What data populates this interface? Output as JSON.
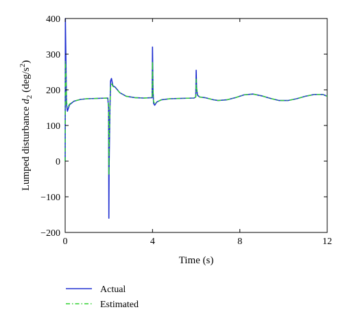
{
  "chart_data": {
    "type": "line",
    "title": "",
    "xlabel": "Time (s)",
    "ylabel_parts": {
      "prefix": "Lumped disturbance ",
      "var": "d",
      "sub": "2",
      "unit_open": " (deg/s",
      "sup": "2",
      "unit_close": ")"
    },
    "xlim": [
      0,
      12
    ],
    "ylim": [
      -200,
      400
    ],
    "xticks": [
      0,
      4,
      8,
      12
    ],
    "yticks": [
      -200,
      -100,
      0,
      100,
      200,
      300,
      400
    ],
    "grid": false,
    "legend_position": "below",
    "series": [
      {
        "name": "Actual",
        "color": "#1f2fd0",
        "style": "solid",
        "x": [
          0,
          0.01,
          0.03,
          0.06,
          0.1,
          0.2,
          0.4,
          0.7,
          1.0,
          1.5,
          1.95,
          1.99,
          2.0,
          2.01,
          2.05,
          2.08,
          2.12,
          2.18,
          2.3,
          2.5,
          2.8,
          3.2,
          3.6,
          3.98,
          4.0,
          4.02,
          4.05,
          4.1,
          4.2,
          4.4,
          4.8,
          5.3,
          5.9,
          5.98,
          6.0,
          6.02,
          6.06,
          6.15,
          6.4,
          6.8,
          7.0,
          7.4,
          7.8,
          8.2,
          8.6,
          9.0,
          9.4,
          9.8,
          10.2,
          10.6,
          11.0,
          11.4,
          11.8,
          12.0
        ],
        "y": [
          0,
          400,
          300,
          160,
          140,
          158,
          168,
          173,
          175,
          176,
          177,
          150,
          -160,
          -30,
          150,
          225,
          232,
          212,
          207,
          192,
          182,
          178,
          177,
          178,
          320,
          200,
          162,
          157,
          166,
          172,
          175,
          176,
          177,
          180,
          255,
          205,
          185,
          180,
          178,
          172,
          170,
          172,
          178,
          186,
          188,
          183,
          176,
          170,
          170,
          175,
          182,
          187,
          187,
          182
        ]
      },
      {
        "name": "Estimated",
        "color": "#2fd02f",
        "style": "dashdot",
        "x": [
          0,
          0.01,
          0.03,
          0.06,
          0.1,
          0.2,
          0.4,
          0.7,
          1.0,
          1.5,
          1.95,
          1.99,
          2.0,
          2.01,
          2.05,
          2.08,
          2.12,
          2.18,
          2.3,
          2.5,
          2.8,
          3.2,
          3.6,
          3.98,
          4.0,
          4.02,
          4.05,
          4.1,
          4.2,
          4.4,
          4.8,
          5.3,
          5.9,
          5.98,
          6.0,
          6.02,
          6.06,
          6.15,
          6.4,
          6.8,
          7.0,
          7.4,
          7.8,
          8.2,
          8.6,
          9.0,
          9.4,
          9.8,
          10.2,
          10.6,
          11.0,
          11.4,
          11.8,
          12.0
        ],
        "y": [
          0,
          280,
          250,
          170,
          150,
          160,
          168,
          173,
          175,
          176,
          177,
          155,
          -40,
          20,
          150,
          210,
          220,
          210,
          206,
          192,
          182,
          178,
          177,
          178,
          280,
          205,
          168,
          160,
          166,
          172,
          175,
          176,
          177,
          180,
          230,
          205,
          188,
          180,
          178,
          172,
          170,
          172,
          178,
          186,
          188,
          183,
          176,
          170,
          170,
          175,
          182,
          187,
          187,
          182
        ]
      }
    ]
  }
}
